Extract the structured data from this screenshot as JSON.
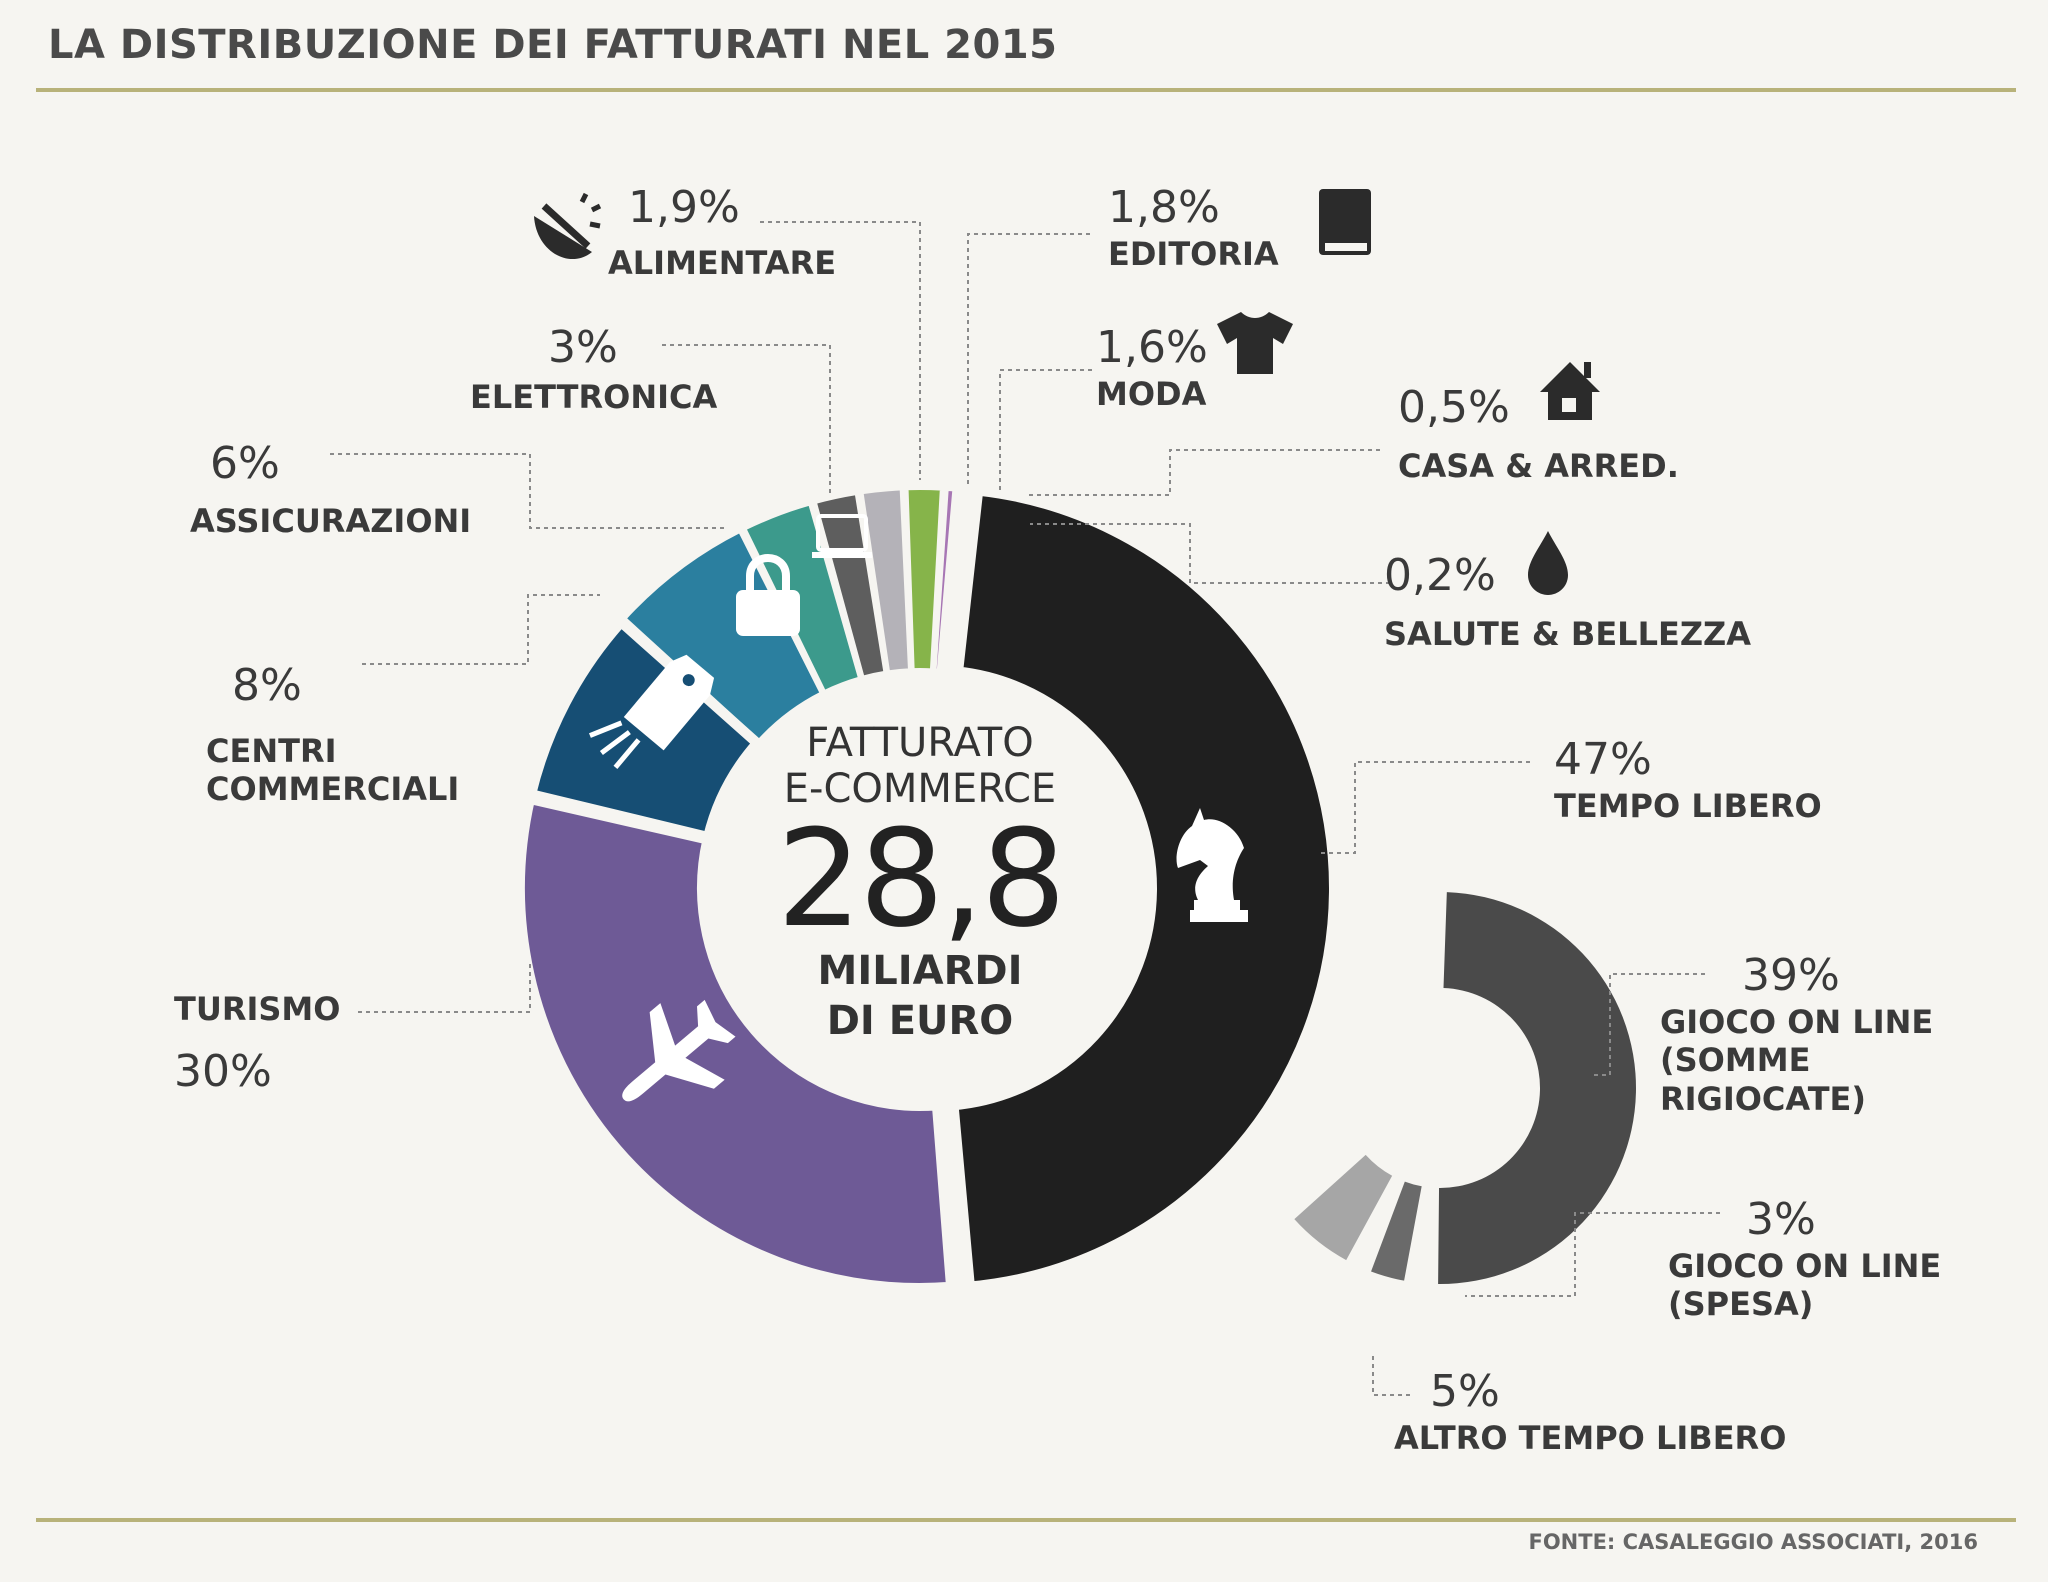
{
  "title": "LA DISTRIBUZIONE DEI FATTURATI NEL 2015",
  "source": "FONTE: CASALEGGIO ASSOCIATI, 2016",
  "center": {
    "caption_line1": "FATTURATO",
    "caption_line2": "E-COMMERCE",
    "value": "28,8",
    "unit_line1": "MILIARDI",
    "unit_line2": "DI EURO"
  },
  "colors": {
    "tempo_libero": "#1f1f1f",
    "turismo": "#6e5a96",
    "centri_commerciali": "#164e74",
    "assicurazioni": "#2b7f9f",
    "elettronica": "#3c9a8c",
    "alimentare": "#5e5e5e",
    "editoria": "#b4b2b8",
    "moda": "#86b44a",
    "casa": "#a776b4",
    "salute": "#c07aa8",
    "gioco_somme": "#4a4a4a",
    "gioco_spesa": "#6a6a6a",
    "altro": "#a6a6a6"
  },
  "chart_data": [
    {
      "type": "pie",
      "title": "LA DISTRIBUZIONE DEI FATTURATI NEL 2015",
      "variant": "donut",
      "center_total": "28,8 MILIARDI DI EURO",
      "categories": [
        "TEMPO LIBERO",
        "TURISMO",
        "CENTRI COMMERCIALI",
        "ASSICURAZIONI",
        "ELETTRONICA",
        "ALIMENTARE",
        "EDITORIA",
        "MODA",
        "CASA & ARRED.",
        "SALUTE & BELLEZZA"
      ],
      "values": [
        47,
        30,
        8,
        6,
        3,
        1.9,
        1.8,
        1.6,
        0.5,
        0.2
      ],
      "value_labels": [
        "47%",
        "30%",
        "8%",
        "6%",
        "3%",
        "1,9%",
        "1,8%",
        "1,6%",
        "0,5%",
        "0,2%"
      ],
      "icons": [
        "chess-knight-icon",
        "airplane-icon",
        "price-tag-icon",
        "padlock-icon",
        "monitor-icon",
        "food-bowl-icon",
        "book-icon",
        "tshirt-icon",
        "house-icon",
        "droplet-icon"
      ]
    },
    {
      "type": "pie",
      "variant": "partial-ring breakdown of TEMPO LIBERO",
      "categories": [
        "GIOCO ON LINE (SOMME RIGIOCATE)",
        "GIOCO ON LINE (SPESA)",
        "ALTRO TEMPO LIBERO"
      ],
      "values": [
        39,
        3,
        5
      ],
      "value_labels": [
        "39%",
        "3%",
        "5%"
      ]
    }
  ],
  "labels": {
    "alimentare": {
      "pct": "1,9%",
      "name": "ALIMENTARE"
    },
    "editoria": {
      "pct": "1,8%",
      "name": "EDITORIA"
    },
    "elettronica": {
      "pct": "3%",
      "name": "ELETTRONICA"
    },
    "moda": {
      "pct": "1,6%",
      "name": "MODA"
    },
    "assicurazioni": {
      "pct": "6%",
      "name": "ASSICURAZIONI"
    },
    "casa": {
      "pct": "0,5%",
      "name": "CASA & ARRED."
    },
    "salute": {
      "pct": "0,2%",
      "name": "SALUTE & BELLEZZA"
    },
    "centri": {
      "pct": "8%",
      "name1": "CENTRI",
      "name2": "COMMERCIALI"
    },
    "tempo_libero": {
      "pct": "47%",
      "name": "TEMPO LIBERO"
    },
    "turismo": {
      "pct": "30%",
      "name": "TURISMO"
    },
    "gioco_somme": {
      "pct": "39%",
      "name1": "GIOCO ON LINE",
      "name2": "(SOMME",
      "name3": "RIGIOCATE)"
    },
    "gioco_spesa": {
      "pct": "3%",
      "name1": "GIOCO ON LINE",
      "name2": "(SPESA)"
    },
    "altro": {
      "pct": "5%",
      "name": "ALTRO TEMPO LIBERO"
    }
  }
}
